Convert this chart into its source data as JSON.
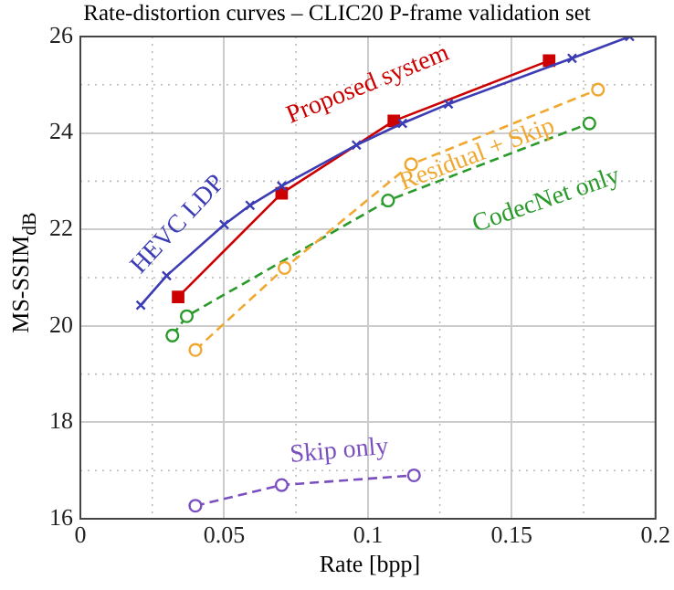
{
  "chart_data": {
    "type": "line",
    "title": "Rate-distortion curves – CLIC20 P-frame validation set",
    "xlabel": "Rate [bpp]",
    "ylabel": "MS-SSIM$_{dB}$",
    "xlim": [
      0,
      0.2
    ],
    "xticks": [
      0,
      0.05,
      0.1,
      0.15,
      0.2
    ],
    "ylim": [
      16,
      26
    ],
    "yticks": [
      16,
      18,
      20,
      22,
      24,
      26
    ],
    "grid": true,
    "legend": false,
    "series": [
      {
        "name": "HEVC LDP",
        "color": "#3c3cb4",
        "marker": "cross",
        "line_style": "solid",
        "x": [
          0.021,
          0.03,
          0.05,
          0.059,
          0.07,
          0.096,
          0.112,
          0.128,
          0.171,
          0.191
        ],
        "values": [
          20.43,
          21.04,
          22.1,
          22.5,
          22.9,
          23.75,
          24.2,
          24.6,
          25.55,
          26
        ]
      },
      {
        "name": "Proposed system",
        "color": "#cc0000",
        "marker": "square",
        "line_style": "solid",
        "x": [
          0.034,
          0.07,
          0.109,
          0.163
        ],
        "values": [
          20.6,
          22.75,
          24.25,
          25.5
        ]
      },
      {
        "name": "Residual + Skip",
        "color": "#f0a830",
        "marker": "circle",
        "line_style": "dashed",
        "x": [
          0.04,
          0.071,
          0.115,
          0.18
        ],
        "values": [
          19.5,
          21.2,
          23.35,
          24.9
        ]
      },
      {
        "name": "CodecNet only",
        "color": "#2a9a2a",
        "marker": "circle",
        "line_style": "dashed",
        "x": [
          0.032,
          0.037,
          0.107,
          0.177
        ],
        "values": [
          19.8,
          20.2,
          22.6,
          24.2
        ]
      },
      {
        "name": "Skip only",
        "color": "#7a50c0",
        "marker": "circle",
        "line_style": "dashed",
        "x": [
          0.04,
          0.07,
          0.116
        ],
        "values": [
          16.27,
          16.7,
          16.9
        ]
      }
    ]
  }
}
